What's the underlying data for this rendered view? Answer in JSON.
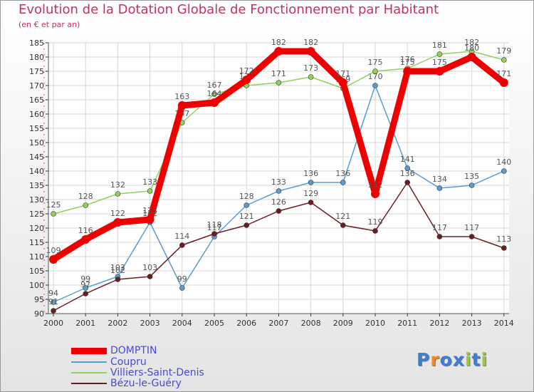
{
  "chart_data": {
    "type": "line",
    "title": "Evolution de la Dotation Globale de Fonctionnement par Habitant",
    "subtitle": "(en € et par an)",
    "xlabel": "",
    "ylabel": "",
    "ylim": [
      90,
      185
    ],
    "ytick_step": 5,
    "grid": true,
    "categories": [
      "2000",
      "2001",
      "2002",
      "2003",
      "2004",
      "2005",
      "2006",
      "2007",
      "2008",
      "2009",
      "2010",
      "2011",
      "2012",
      "2013",
      "2014"
    ],
    "series": [
      {
        "name": "DOMPTIN",
        "color": "#ee0000",
        "bold": true,
        "values": [
          109,
          116,
          122,
          123,
          163,
          164,
          172,
          182,
          182,
          171,
          132,
          175,
          175,
          180,
          171
        ]
      },
      {
        "name": "Coupru",
        "color": "#5b9bd0",
        "bold": false,
        "values": [
          94,
          99,
          103,
          122,
          99,
          117,
          128,
          133,
          136,
          136,
          170,
          141,
          134,
          135,
          140
        ]
      },
      {
        "name": "Villiers-Saint-Denis",
        "color": "#8ed25a",
        "bold": false,
        "values": [
          125,
          128,
          132,
          133,
          157,
          167,
          170,
          171,
          173,
          169,
          175,
          176,
          181,
          182,
          179
        ]
      },
      {
        "name": "Bézu-le-Guéry",
        "color": "#6b1e22",
        "bold": false,
        "values": [
          91,
          97,
          102,
          103,
          114,
          118,
          121,
          126,
          129,
          121,
          119,
          136,
          117,
          117,
          113
        ]
      }
    ]
  },
  "legend_position": "bottom-left",
  "logo": {
    "text": "Proxiti",
    "letters": [
      "P",
      "r",
      "o",
      "x",
      "i",
      "t",
      "i"
    ],
    "colors": [
      "#3a7fd0",
      "#f08a20",
      "#3a7fd0",
      "#3a7fd0",
      "#9bc83c",
      "#3a7fd0",
      "#9bc83c"
    ]
  }
}
